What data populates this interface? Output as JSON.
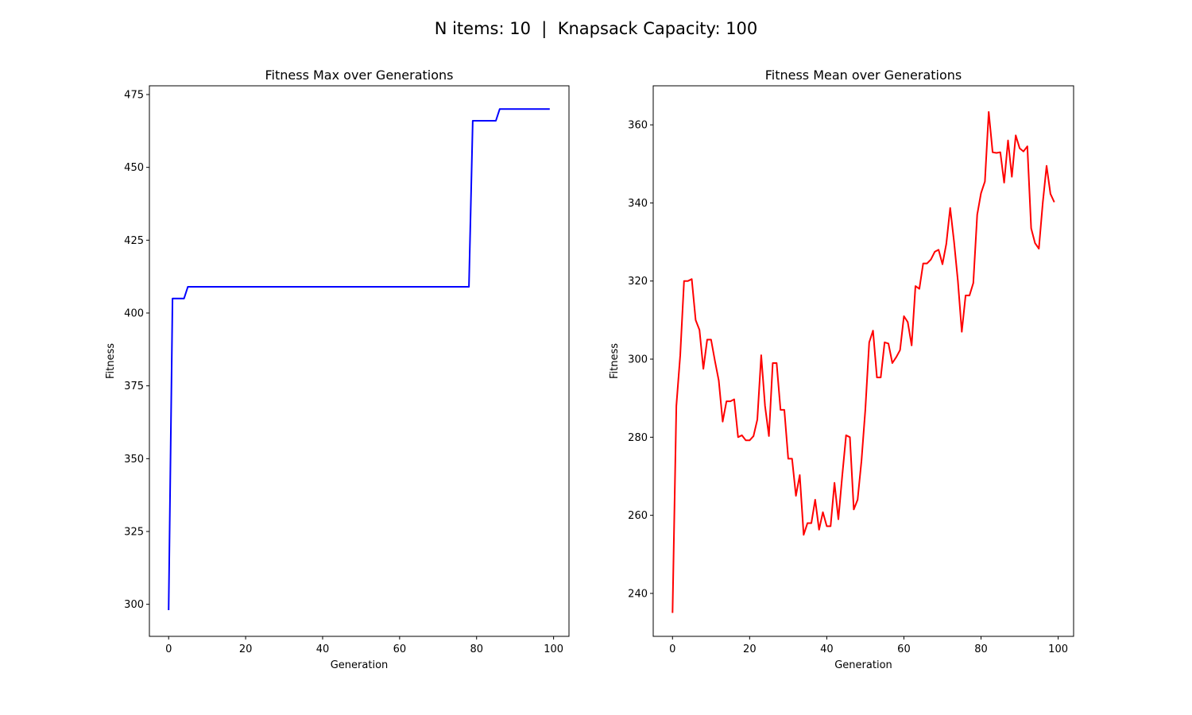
{
  "figure": {
    "suptitle": "N items: 10  |  Knapsack Capacity: 100"
  },
  "chart_data": [
    {
      "type": "line",
      "title": "Fitness Max over Generations",
      "xlabel": "Generation",
      "ylabel": "Fitness",
      "xlim": [
        -5,
        104
      ],
      "ylim": [
        289,
        478
      ],
      "xticks": [
        0,
        20,
        40,
        60,
        80,
        100
      ],
      "yticks": [
        300,
        325,
        350,
        375,
        400,
        425,
        450,
        475
      ],
      "grid": false,
      "color": "#0000ff",
      "series": [
        {
          "x": [
            0,
            1,
            2,
            3,
            4,
            5,
            6,
            77,
            78,
            79,
            80,
            84,
            85,
            86,
            87,
            99
          ],
          "values": [
            298,
            405,
            405,
            405,
            405,
            409,
            409,
            409,
            409,
            466,
            466,
            466,
            466,
            470,
            470,
            470
          ]
        }
      ]
    },
    {
      "type": "line",
      "title": "Fitness Mean over Generations",
      "xlabel": "Generation",
      "ylabel": "Fitness",
      "xlim": [
        -5,
        104
      ],
      "ylim": [
        229,
        370
      ],
      "xticks": [
        0,
        20,
        40,
        60,
        80,
        100
      ],
      "yticks": [
        240,
        260,
        280,
        300,
        320,
        340,
        360
      ],
      "grid": false,
      "color": "#ff0000",
      "series": [
        {
          "x": [
            0,
            1,
            2,
            3,
            4,
            5,
            6,
            7,
            8,
            9,
            10,
            11,
            12,
            13,
            14,
            15,
            16,
            17,
            18,
            19,
            20,
            21,
            22,
            23,
            24,
            25,
            26,
            27,
            28,
            29,
            30,
            31,
            32,
            33,
            34,
            35,
            36,
            37,
            38,
            39,
            40,
            41,
            42,
            43,
            44,
            45,
            46,
            47,
            48,
            49,
            50,
            51,
            52,
            53,
            54,
            55,
            56,
            57,
            58,
            59,
            60,
            61,
            62,
            63,
            64,
            65,
            66,
            67,
            68,
            69,
            70,
            71,
            72,
            73,
            74,
            75,
            76,
            77,
            78,
            79,
            80,
            81,
            82,
            83,
            84,
            85,
            86,
            87,
            88,
            89,
            90,
            91,
            92,
            93,
            94,
            95,
            96,
            97,
            98,
            99
          ],
          "values": [
            235,
            288,
            301,
            320,
            320,
            320.5,
            310,
            307.5,
            297.5,
            305,
            305,
            299.5,
            294.5,
            284,
            289.2,
            289.2,
            289.7,
            280,
            280.5,
            279.2,
            279.2,
            280.3,
            284.5,
            301,
            288,
            280.3,
            299,
            299,
            287,
            287,
            274.5,
            274.5,
            265,
            270.3,
            255,
            258,
            258,
            264,
            256.3,
            260.8,
            257.2,
            257.2,
            268.3,
            259,
            270,
            280.5,
            280,
            261.5,
            264,
            274,
            287,
            304.3,
            307.3,
            295.3,
            295.3,
            304.3,
            304,
            299,
            300.5,
            302.3,
            311,
            309.5,
            303.5,
            318.7,
            318,
            324.5,
            324.5,
            325.5,
            327.5,
            328,
            324.3,
            329.5,
            338.7,
            330,
            320,
            307,
            316.3,
            316.3,
            319.5,
            337,
            342.5,
            345.5,
            363.3,
            353,
            352.8,
            353,
            345.2,
            356,
            346.7,
            357.3,
            354,
            353.2,
            354.5,
            333.5,
            329.7,
            328.3,
            340,
            349.5,
            342.3,
            340.2
          ]
        }
      ]
    }
  ]
}
